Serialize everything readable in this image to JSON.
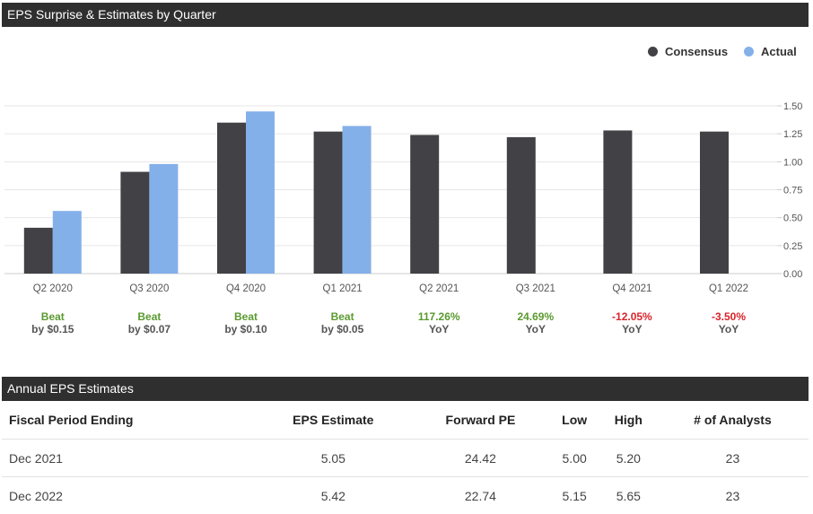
{
  "chart_header": {
    "title": "EPS Surprise & Estimates by Quarter"
  },
  "legend": [
    {
      "label": "Consensus",
      "color": "#414146"
    },
    {
      "label": "Actual",
      "color": "#84b0ea"
    }
  ],
  "chart_data": {
    "type": "bar",
    "title": "EPS Surprise & Estimates by Quarter",
    "categories": [
      "Q2 2020",
      "Q3 2020",
      "Q4 2020",
      "Q1 2021",
      "Q2 2021",
      "Q3 2021",
      "Q4 2021",
      "Q1 2022"
    ],
    "series": [
      {
        "name": "Consensus",
        "color": "#414146",
        "values": [
          0.41,
          0.91,
          1.35,
          1.27,
          1.24,
          1.22,
          1.28,
          1.27
        ]
      },
      {
        "name": "Actual",
        "color": "#84b0ea",
        "values": [
          0.56,
          0.98,
          1.45,
          1.32,
          null,
          null,
          null,
          null
        ]
      }
    ],
    "ylim": [
      0,
      1.5
    ],
    "yticks": [
      "0.00",
      "0.25",
      "0.50",
      "0.75",
      "1.00",
      "1.25",
      "1.50"
    ],
    "ytick_values": [
      0,
      0.25,
      0.5,
      0.75,
      1.0,
      1.25,
      1.5
    ],
    "grid": true,
    "y_axis_side": "right",
    "legend_position": "top-right",
    "annotations": [
      {
        "line1": "Beat",
        "line2": "by $0.15",
        "color": "#5a9a2f"
      },
      {
        "line1": "Beat",
        "line2": "by $0.07",
        "color": "#5a9a2f"
      },
      {
        "line1": "Beat",
        "line2": "by $0.10",
        "color": "#5a9a2f"
      },
      {
        "line1": "Beat",
        "line2": "by $0.05",
        "color": "#5a9a2f"
      },
      {
        "line1": "117.26%",
        "line2": "YoY",
        "color": "#5a9a2f"
      },
      {
        "line1": "24.69%",
        "line2": "YoY",
        "color": "#5a9a2f"
      },
      {
        "line1": "-12.05%",
        "line2": "YoY",
        "color": "#d9232a"
      },
      {
        "line1": "-3.50%",
        "line2": "YoY",
        "color": "#d9232a"
      }
    ]
  },
  "annual_header": {
    "title": "Annual EPS Estimates"
  },
  "annual_table": {
    "columns": [
      "Fiscal Period Ending",
      "EPS Estimate",
      "Forward PE",
      "Low",
      "High",
      "# of Analysts"
    ],
    "rows": [
      [
        "Dec 2021",
        "5.05",
        "24.42",
        "5.00",
        "5.20",
        "23"
      ],
      [
        "Dec 2022",
        "5.42",
        "22.74",
        "5.15",
        "5.65",
        "23"
      ]
    ]
  }
}
